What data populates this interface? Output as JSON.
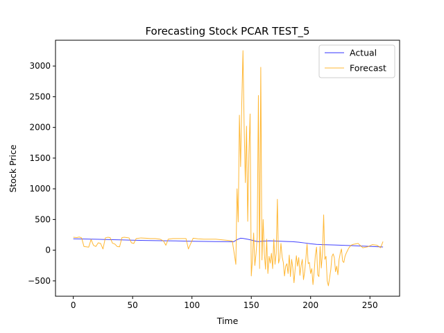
{
  "chart_data": {
    "type": "line",
    "title": "Forecasting Stock PCAR TEST_5",
    "xlabel": "Time",
    "ylabel": "Stock Price",
    "xlim": [
      -15,
      275
    ],
    "ylim": [
      -750,
      3420
    ],
    "xticks": [
      0,
      50,
      100,
      150,
      200,
      250
    ],
    "yticks": [
      -500,
      0,
      500,
      1000,
      1500,
      2000,
      2500,
      3000
    ],
    "grid": false,
    "legend_position": "top-right",
    "series": [
      {
        "name": "Actual",
        "color": "#0000ff",
        "points": [
          [
            0,
            185
          ],
          [
            10,
            182
          ],
          [
            20,
            178
          ],
          [
            30,
            172
          ],
          [
            40,
            168
          ],
          [
            50,
            163
          ],
          [
            60,
            158
          ],
          [
            70,
            155
          ],
          [
            80,
            152
          ],
          [
            90,
            150
          ],
          [
            100,
            146
          ],
          [
            110,
            143
          ],
          [
            120,
            140
          ],
          [
            130,
            138
          ],
          [
            135,
            137
          ],
          [
            137,
            160
          ],
          [
            139,
            180
          ],
          [
            141,
            195
          ],
          [
            143,
            192
          ],
          [
            145,
            185
          ],
          [
            147,
            178
          ],
          [
            150,
            165
          ],
          [
            153,
            150
          ],
          [
            156,
            140
          ],
          [
            160,
            148
          ],
          [
            165,
            152
          ],
          [
            170,
            150
          ],
          [
            175,
            145
          ],
          [
            180,
            142
          ],
          [
            185,
            138
          ],
          [
            190,
            130
          ],
          [
            195,
            118
          ],
          [
            200,
            105
          ],
          [
            205,
            95
          ],
          [
            210,
            90
          ],
          [
            220,
            85
          ],
          [
            230,
            78
          ],
          [
            240,
            70
          ],
          [
            250,
            62
          ],
          [
            261,
            52
          ]
        ]
      },
      {
        "name": "Forecast",
        "color": "#ffa500",
        "points": [
          [
            0,
            210
          ],
          [
            3,
            205
          ],
          [
            5,
            215
          ],
          [
            7,
            200
          ],
          [
            9,
            60
          ],
          [
            11,
            55
          ],
          [
            13,
            50
          ],
          [
            15,
            175
          ],
          [
            17,
            80
          ],
          [
            19,
            60
          ],
          [
            21,
            120
          ],
          [
            23,
            110
          ],
          [
            25,
            20
          ],
          [
            27,
            200
          ],
          [
            29,
            210
          ],
          [
            31,
            205
          ],
          [
            33,
            115
          ],
          [
            35,
            100
          ],
          [
            37,
            60
          ],
          [
            39,
            55
          ],
          [
            41,
            205
          ],
          [
            43,
            210
          ],
          [
            45,
            205
          ],
          [
            47,
            200
          ],
          [
            49,
            120
          ],
          [
            51,
            110
          ],
          [
            53,
            190
          ],
          [
            57,
            200
          ],
          [
            61,
            195
          ],
          [
            65,
            190
          ],
          [
            69,
            190
          ],
          [
            73,
            180
          ],
          [
            76,
            150
          ],
          [
            78,
            80
          ],
          [
            80,
            180
          ],
          [
            84,
            190
          ],
          [
            88,
            190
          ],
          [
            92,
            190
          ],
          [
            95,
            190
          ],
          [
            97,
            20
          ],
          [
            99,
            110
          ],
          [
            101,
            195
          ],
          [
            105,
            185
          ],
          [
            110,
            180
          ],
          [
            115,
            180
          ],
          [
            120,
            180
          ],
          [
            125,
            170
          ],
          [
            130,
            160
          ],
          [
            134,
            150
          ],
          [
            136,
            -100
          ],
          [
            137,
            -230
          ],
          [
            138,
            1000
          ],
          [
            139,
            460
          ],
          [
            140,
            2200
          ],
          [
            141,
            1360
          ],
          [
            142,
            2400
          ],
          [
            143,
            3250
          ],
          [
            144,
            2000
          ],
          [
            145,
            1100
          ],
          [
            146,
            2020
          ],
          [
            147,
            470
          ],
          [
            148,
            1560
          ],
          [
            149,
            2220
          ],
          [
            150,
            -420
          ],
          [
            151,
            -150
          ],
          [
            152,
            280
          ],
          [
            153,
            -250
          ],
          [
            154,
            -60
          ],
          [
            155,
            220
          ],
          [
            156,
            2520
          ],
          [
            157,
            -300
          ],
          [
            158,
            2980
          ],
          [
            159,
            -160
          ],
          [
            160,
            500
          ],
          [
            161,
            -50
          ],
          [
            162,
            -310
          ],
          [
            163,
            180
          ],
          [
            164,
            -380
          ],
          [
            165,
            -100
          ],
          [
            166,
            -210
          ],
          [
            167,
            -50
          ],
          [
            168,
            -300
          ],
          [
            169,
            180
          ],
          [
            170,
            -230
          ],
          [
            171,
            -50
          ],
          [
            172,
            830
          ],
          [
            173,
            -210
          ],
          [
            174,
            -130
          ],
          [
            175,
            110
          ],
          [
            176,
            -110
          ],
          [
            177,
            -200
          ],
          [
            178,
            -420
          ],
          [
            179,
            -260
          ],
          [
            180,
            -220
          ],
          [
            181,
            -380
          ],
          [
            182,
            -80
          ],
          [
            183,
            -430
          ],
          [
            184,
            -150
          ],
          [
            185,
            -290
          ],
          [
            186,
            -530
          ],
          [
            187,
            -300
          ],
          [
            188,
            -90
          ],
          [
            189,
            -260
          ],
          [
            190,
            -120
          ],
          [
            191,
            -410
          ],
          [
            192,
            -250
          ],
          [
            193,
            -150
          ],
          [
            194,
            -480
          ],
          [
            195,
            -350
          ],
          [
            196,
            -140
          ],
          [
            197,
            100
          ],
          [
            198,
            -220
          ],
          [
            199,
            -200
          ],
          [
            200,
            -380
          ],
          [
            201,
            -300
          ],
          [
            202,
            -560
          ],
          [
            203,
            -350
          ],
          [
            204,
            -80
          ],
          [
            205,
            50
          ],
          [
            206,
            -400
          ],
          [
            207,
            -430
          ],
          [
            208,
            60
          ],
          [
            209,
            -290
          ],
          [
            210,
            -50
          ],
          [
            211,
            575
          ],
          [
            212,
            -150
          ],
          [
            213,
            -100
          ],
          [
            214,
            -500
          ],
          [
            215,
            -580
          ],
          [
            216,
            -450
          ],
          [
            217,
            -320
          ],
          [
            218,
            -100
          ],
          [
            219,
            -60
          ],
          [
            220,
            -120
          ],
          [
            221,
            -350
          ],
          [
            222,
            -260
          ],
          [
            223,
            -400
          ],
          [
            224,
            -150
          ],
          [
            225,
            -50
          ],
          [
            226,
            20
          ],
          [
            227,
            -180
          ],
          [
            228,
            -200
          ],
          [
            229,
            -100
          ],
          [
            230,
            -50
          ],
          [
            232,
            30
          ],
          [
            234,
            80
          ],
          [
            236,
            95
          ],
          [
            240,
            110
          ],
          [
            244,
            40
          ],
          [
            248,
            55
          ],
          [
            252,
            90
          ],
          [
            256,
            80
          ],
          [
            259,
            40
          ],
          [
            261,
            140
          ]
        ]
      }
    ]
  }
}
